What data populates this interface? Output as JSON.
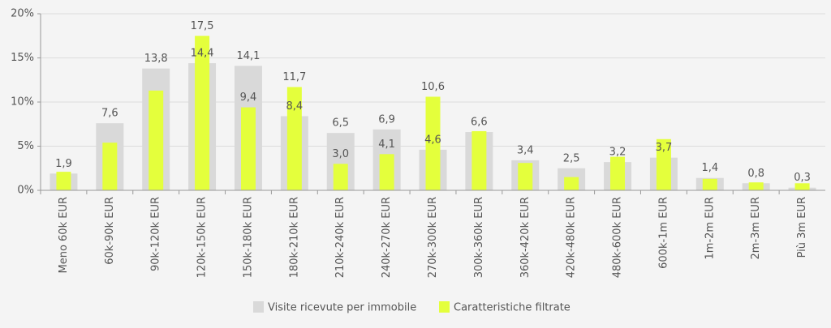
{
  "chart_data": {
    "type": "bar",
    "categories": [
      "Meno 60k EUR",
      "60k-90k EUR",
      "90k-120k EUR",
      "120k-150k EUR",
      "150k-180k EUR",
      "180k-210k EUR",
      "210k-240k EUR",
      "240k-270k EUR",
      "270k-300k EUR",
      "300k-360k EUR",
      "360k-420k EUR",
      "420k-480k EUR",
      "480k-600k EUR",
      "600k-1m EUR",
      "1m-2m EUR",
      "2m-3m EUR",
      "Più 3m EUR"
    ],
    "series": [
      {
        "name": "Visite ricevute per immobile",
        "color": "#d9d9d9",
        "values": [
          1.9,
          7.6,
          13.8,
          14.4,
          14.1,
          8.4,
          6.5,
          6.9,
          4.6,
          6.6,
          3.4,
          2.5,
          3.2,
          3.7,
          1.4,
          0.8,
          0.3
        ],
        "value_labels": [
          "1,9",
          "7,6",
          "13,8",
          "14,4",
          "14,1",
          "8,4",
          "6,5",
          "6,9",
          "4,6",
          "6,6",
          "3,4",
          "2,5",
          "3,2",
          "3,7",
          "1,4",
          "0,8",
          "0,3"
        ]
      },
      {
        "name": "Caratteristiche filtrate",
        "color": "#e4ff3c",
        "values": [
          2.1,
          5.4,
          11.3,
          17.5,
          9.4,
          11.7,
          3.0,
          4.1,
          10.6,
          6.7,
          3.1,
          1.5,
          3.8,
          5.8,
          1.3,
          0.9,
          0.8
        ],
        "value_labels": [
          null,
          null,
          null,
          "17,5",
          "9,4",
          "11,7",
          "3,0",
          "4,1",
          "10,6",
          null,
          null,
          null,
          null,
          null,
          null,
          null,
          null
        ]
      }
    ],
    "ylim": [
      0,
      20
    ],
    "yticks": [
      {
        "value": 0,
        "label": "0%"
      },
      {
        "value": 5,
        "label": "5%"
      },
      {
        "value": 10,
        "label": "10%"
      },
      {
        "value": 15,
        "label": "15%"
      },
      {
        "value": 20,
        "label": "20%"
      }
    ],
    "grid": true
  }
}
